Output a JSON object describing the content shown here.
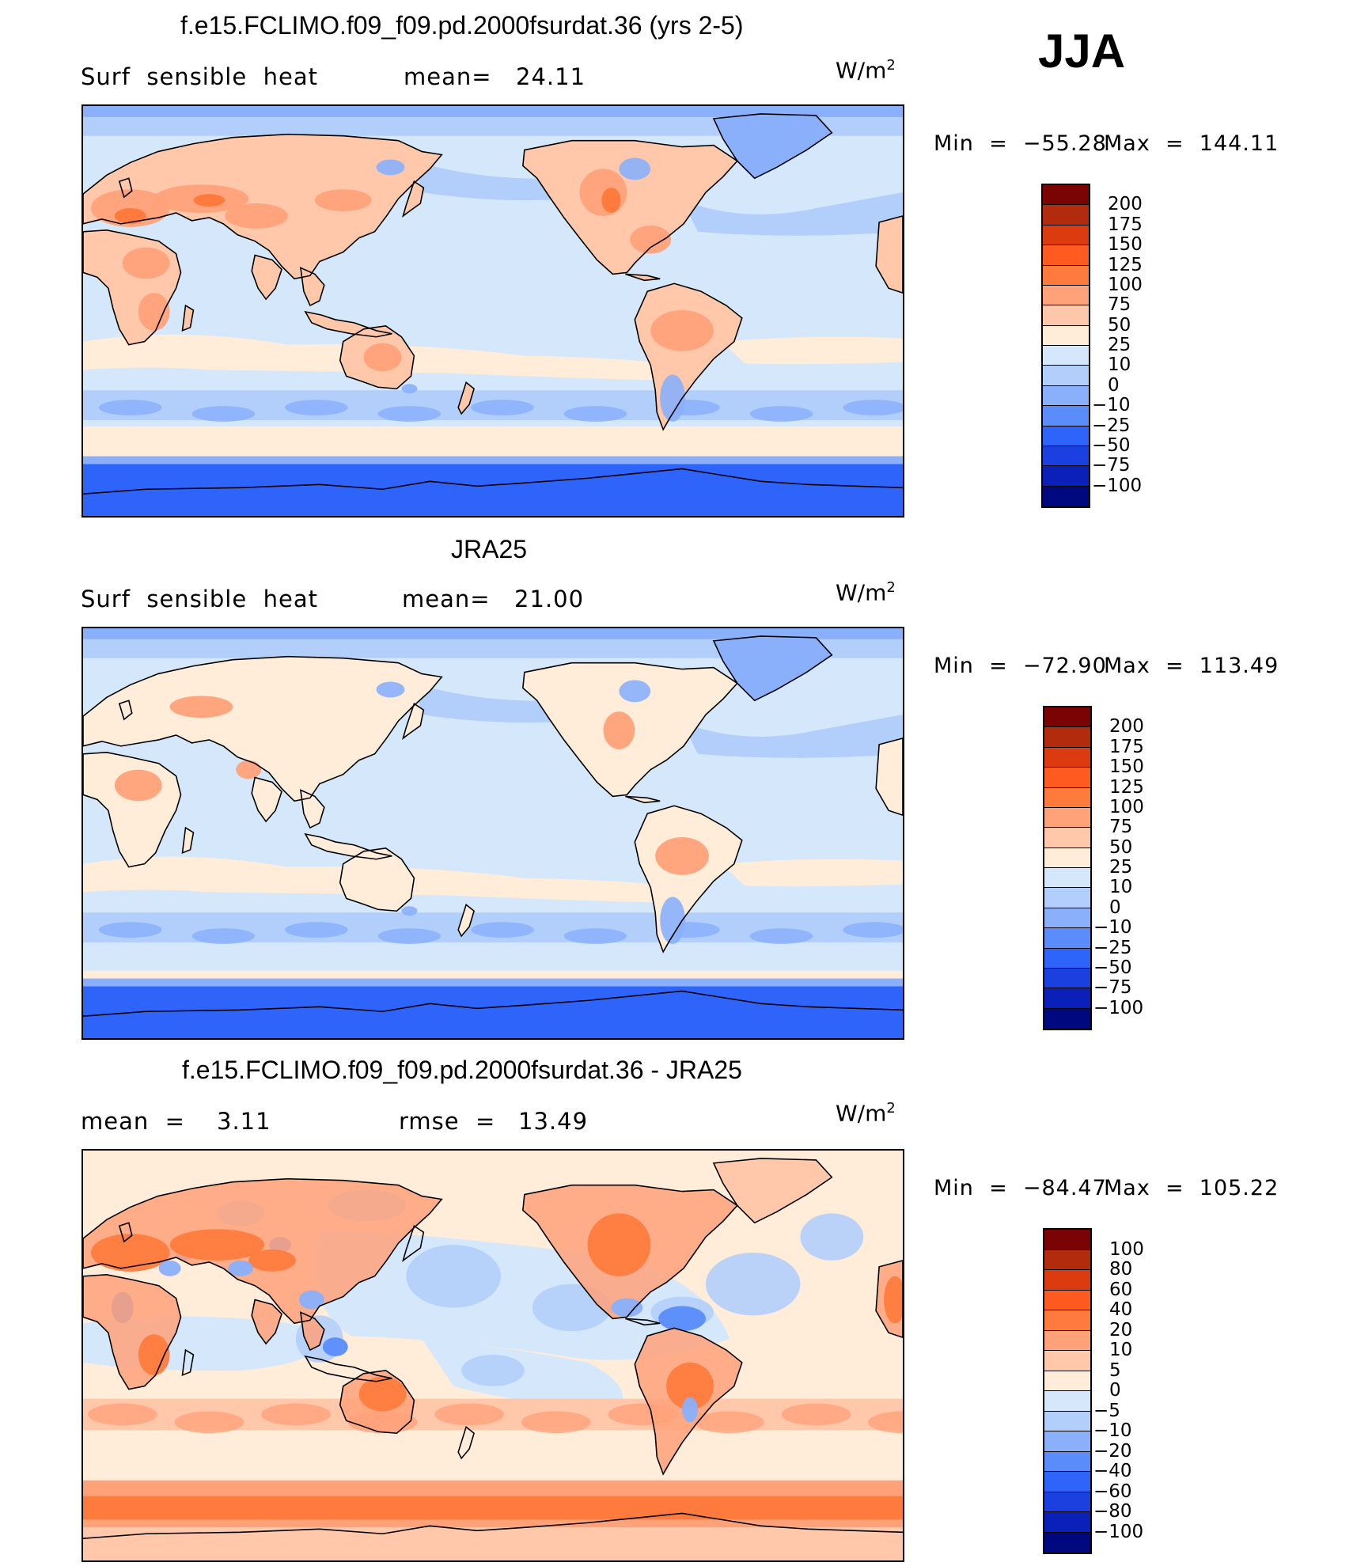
{
  "season": "JJA",
  "units_base": "W/m",
  "units_sup": "2",
  "panels": [
    {
      "title": "f.e15.FCLIMO.f09_f09.pd.2000fsurdat.36 (yrs 2-5)",
      "left_label": "Surf  sensible  heat",
      "stat1_label": "mean=",
      "stat1_value": "24.11",
      "stat2_label": "",
      "stat2_value": "",
      "min_label": "Min  =  −55.28",
      "max_label": "Max  =  144.11",
      "colorbar": {
        "labels": [
          "200",
          "175",
          "150",
          "125",
          "100",
          "75",
          "50",
          "25",
          "10",
          "0",
          "−10",
          "−25",
          "−50",
          "−75",
          "−100"
        ],
        "colors": [
          "#7a0403",
          "#b22b0c",
          "#dc3a0f",
          "#ff5a1f",
          "#ff7b3d",
          "#ffa27a",
          "#ffc8aa",
          "#ffecd9",
          "#d4e7fb",
          "#b2cffb",
          "#8ab0fb",
          "#5a8cfb",
          "#2f64fa",
          "#1a40e0",
          "#0a20b8",
          "#000880"
        ]
      },
      "map_style": "model"
    },
    {
      "title": "JRA25",
      "left_label": "Surf  sensible  heat",
      "stat1_label": "mean=",
      "stat1_value": "21.00",
      "stat2_label": "",
      "stat2_value": "",
      "min_label": "Min  =  −72.90",
      "max_label": "Max  =  113.49",
      "colorbar": {
        "labels": [
          "200",
          "175",
          "150",
          "125",
          "100",
          "75",
          "50",
          "25",
          "10",
          "0",
          "−10",
          "−25",
          "−50",
          "−75",
          "−100"
        ],
        "colors": [
          "#7a0403",
          "#b22b0c",
          "#dc3a0f",
          "#ff5a1f",
          "#ff7b3d",
          "#ffa27a",
          "#ffc8aa",
          "#ffecd9",
          "#d4e7fb",
          "#b2cffb",
          "#8ab0fb",
          "#5a8cfb",
          "#2f64fa",
          "#1a40e0",
          "#0a20b8",
          "#000880"
        ]
      },
      "map_style": "obs"
    },
    {
      "title": "f.e15.FCLIMO.f09_f09.pd.2000fsurdat.36 - JRA25",
      "left_label": "mean  =",
      "stat1_label": "",
      "stat1_value": "3.11",
      "stat2_label": "rmse  =",
      "stat2_value": "13.49",
      "min_label": "Min  =  −84.47",
      "max_label": "Max  =  105.22",
      "colorbar": {
        "labels": [
          "100",
          "80",
          "60",
          "40",
          "20",
          "10",
          "5",
          "0",
          "−5",
          "−10",
          "−20",
          "−40",
          "−60",
          "−80",
          "−100"
        ],
        "colors": [
          "#7a0403",
          "#b22b0c",
          "#dc3a0f",
          "#ff5a1f",
          "#ff7b3d",
          "#ffa27a",
          "#ffc8aa",
          "#ffecd9",
          "#d4e7fb",
          "#b2cffb",
          "#8ab0fb",
          "#5a8cfb",
          "#2f64fa",
          "#1a40e0",
          "#0a20b8",
          "#000880"
        ]
      },
      "map_style": "diff"
    }
  ]
}
